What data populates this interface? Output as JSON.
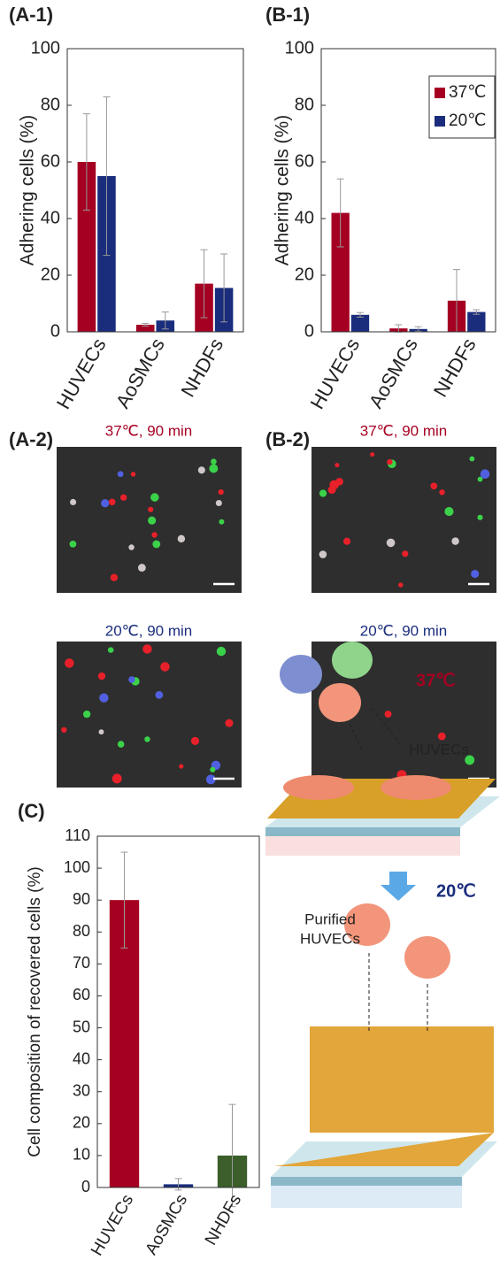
{
  "chart_data": [
    {
      "type": "bar",
      "panel_label": "(A-1)",
      "y_label": "Adhering cells (%)",
      "categories": [
        "HUVECs",
        "AoSMCs",
        "NHDFs"
      ],
      "series": [
        {
          "color": "#a50021",
          "values": [
            60,
            2.5,
            17
          ],
          "errors": [
            17,
            0.5,
            12
          ]
        },
        {
          "color": "#1a2d7c",
          "values": [
            55,
            4,
            15.5
          ],
          "errors": [
            28,
            3,
            12
          ]
        }
      ],
      "ylim": [
        0,
        100
      ],
      "yticks": [
        0,
        20,
        40,
        60,
        80,
        100
      ],
      "legend": false
    },
    {
      "type": "bar",
      "panel_label": "(B-1)",
      "y_label": "Adhering cells (%)",
      "categories": [
        "HUVECs",
        "AoSMCs",
        "NHDFs"
      ],
      "series": [
        {
          "name": "37℃",
          "color": "#a50021",
          "values": [
            42,
            1.2,
            11
          ],
          "errors": [
            12,
            1.3,
            11
          ]
        },
        {
          "name": "20℃",
          "color": "#1a2d7c",
          "values": [
            6,
            1,
            7
          ],
          "errors": [
            0.8,
            0.8,
            0.8
          ]
        }
      ],
      "ylim": [
        0,
        100
      ],
      "yticks": [
        0,
        20,
        40,
        60,
        80,
        100
      ],
      "legend": "upper right"
    },
    {
      "type": "bar",
      "panel_label": "(C)",
      "y_label": "Cell composition of recovered cells (%)",
      "categories": [
        "HUVECs",
        "AoSMCs",
        "NHDFs"
      ],
      "values": [
        90,
        1,
        10
      ],
      "errors": [
        15,
        1.8,
        16
      ],
      "colors": [
        "#a50021",
        "#1a2d7c",
        "#3b5e2b"
      ],
      "ylim": [
        0,
        110
      ],
      "yticks": [
        0,
        10,
        20,
        30,
        40,
        50,
        60,
        70,
        80,
        90,
        100,
        110
      ],
      "legend": false
    }
  ],
  "micrographs": [
    {
      "label": "(A-2)",
      "captions": [
        "37℃, 90 min",
        "20℃, 90 min"
      ]
    },
    {
      "label": "(B-2)",
      "captions": [
        "37℃, 90 min",
        "20℃, 90 min"
      ]
    }
  ],
  "schematic": {
    "top_temperature": "37℃",
    "cell_label": "HUVECs",
    "bottom_temperature": "20℃",
    "purified_label": [
      "Purified",
      "HUVECs"
    ]
  }
}
